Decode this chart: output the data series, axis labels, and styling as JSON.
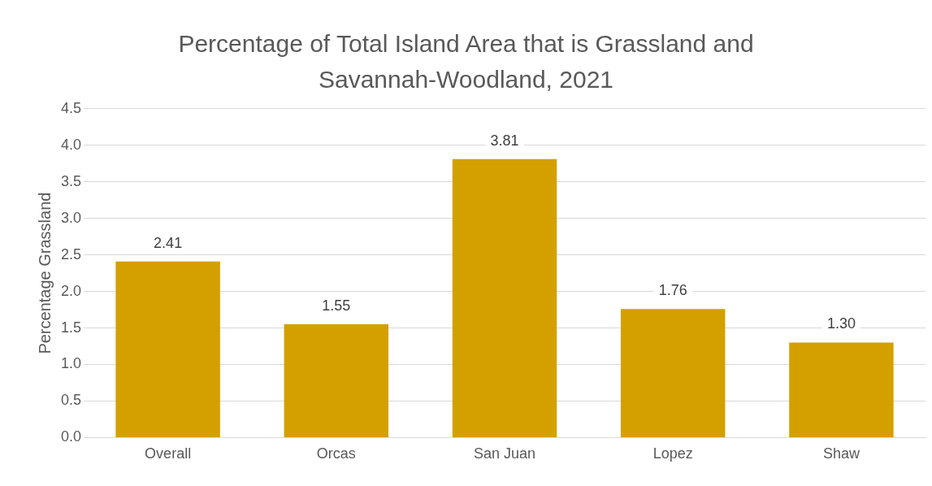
{
  "chart_data": {
    "type": "bar",
    "title": "Percentage of Total Island Area that is Grassland and Savannah-Woodland, 2021",
    "ylabel": "Percentage Grassland",
    "categories": [
      "Overall",
      "Orcas",
      "San Juan",
      "Lopez",
      "Shaw"
    ],
    "values": [
      2.41,
      1.55,
      3.81,
      1.76,
      1.3
    ],
    "value_labels": [
      "2.41",
      "1.55",
      "3.81",
      "1.76",
      "1.30"
    ],
    "color": "#d4a000",
    "ylim": [
      0,
      4.5
    ],
    "yticks": [
      {
        "value": 0,
        "label": "0.0"
      },
      {
        "value": 0.5,
        "label": "0.5"
      },
      {
        "value": 1,
        "label": "1.0"
      },
      {
        "value": 1.5,
        "label": "1.5"
      },
      {
        "value": 2,
        "label": "2.0"
      },
      {
        "value": 2.5,
        "label": "2.5"
      },
      {
        "value": 3,
        "label": "3.0"
      },
      {
        "value": 3.5,
        "label": "3.5"
      },
      {
        "value": 4,
        "label": "4.0"
      },
      {
        "value": 4.5,
        "label": "4.5"
      }
    ],
    "grid": "y",
    "legend": false
  }
}
